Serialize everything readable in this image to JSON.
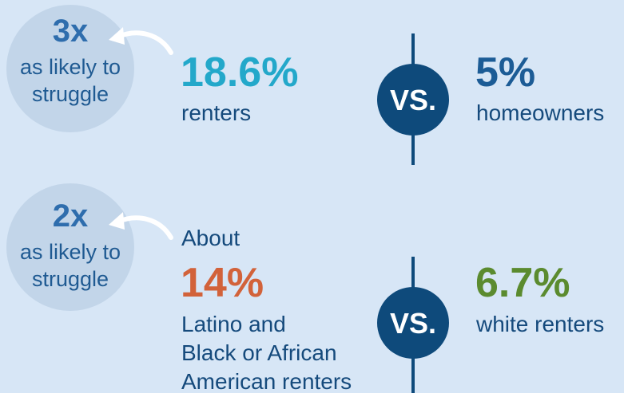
{
  "rows": [
    {
      "badge": {
        "multiplier": "3x",
        "lines": [
          "as likely to",
          "struggle"
        ]
      },
      "left": {
        "value": "18.6%",
        "lines": [
          "renters"
        ]
      },
      "vs": "VS.",
      "right": {
        "value": "5%",
        "lines": [
          "homeowners"
        ]
      }
    },
    {
      "badge": {
        "multiplier": "2x",
        "lines": [
          "as likely to",
          "struggle"
        ]
      },
      "left": {
        "prefix": "About",
        "value": "14%",
        "lines": [
          "Latino and",
          "Black or African",
          "American renters"
        ]
      },
      "vs": "VS.",
      "right": {
        "value": "6.7%",
        "lines": [
          "white renters"
        ]
      }
    }
  ]
}
